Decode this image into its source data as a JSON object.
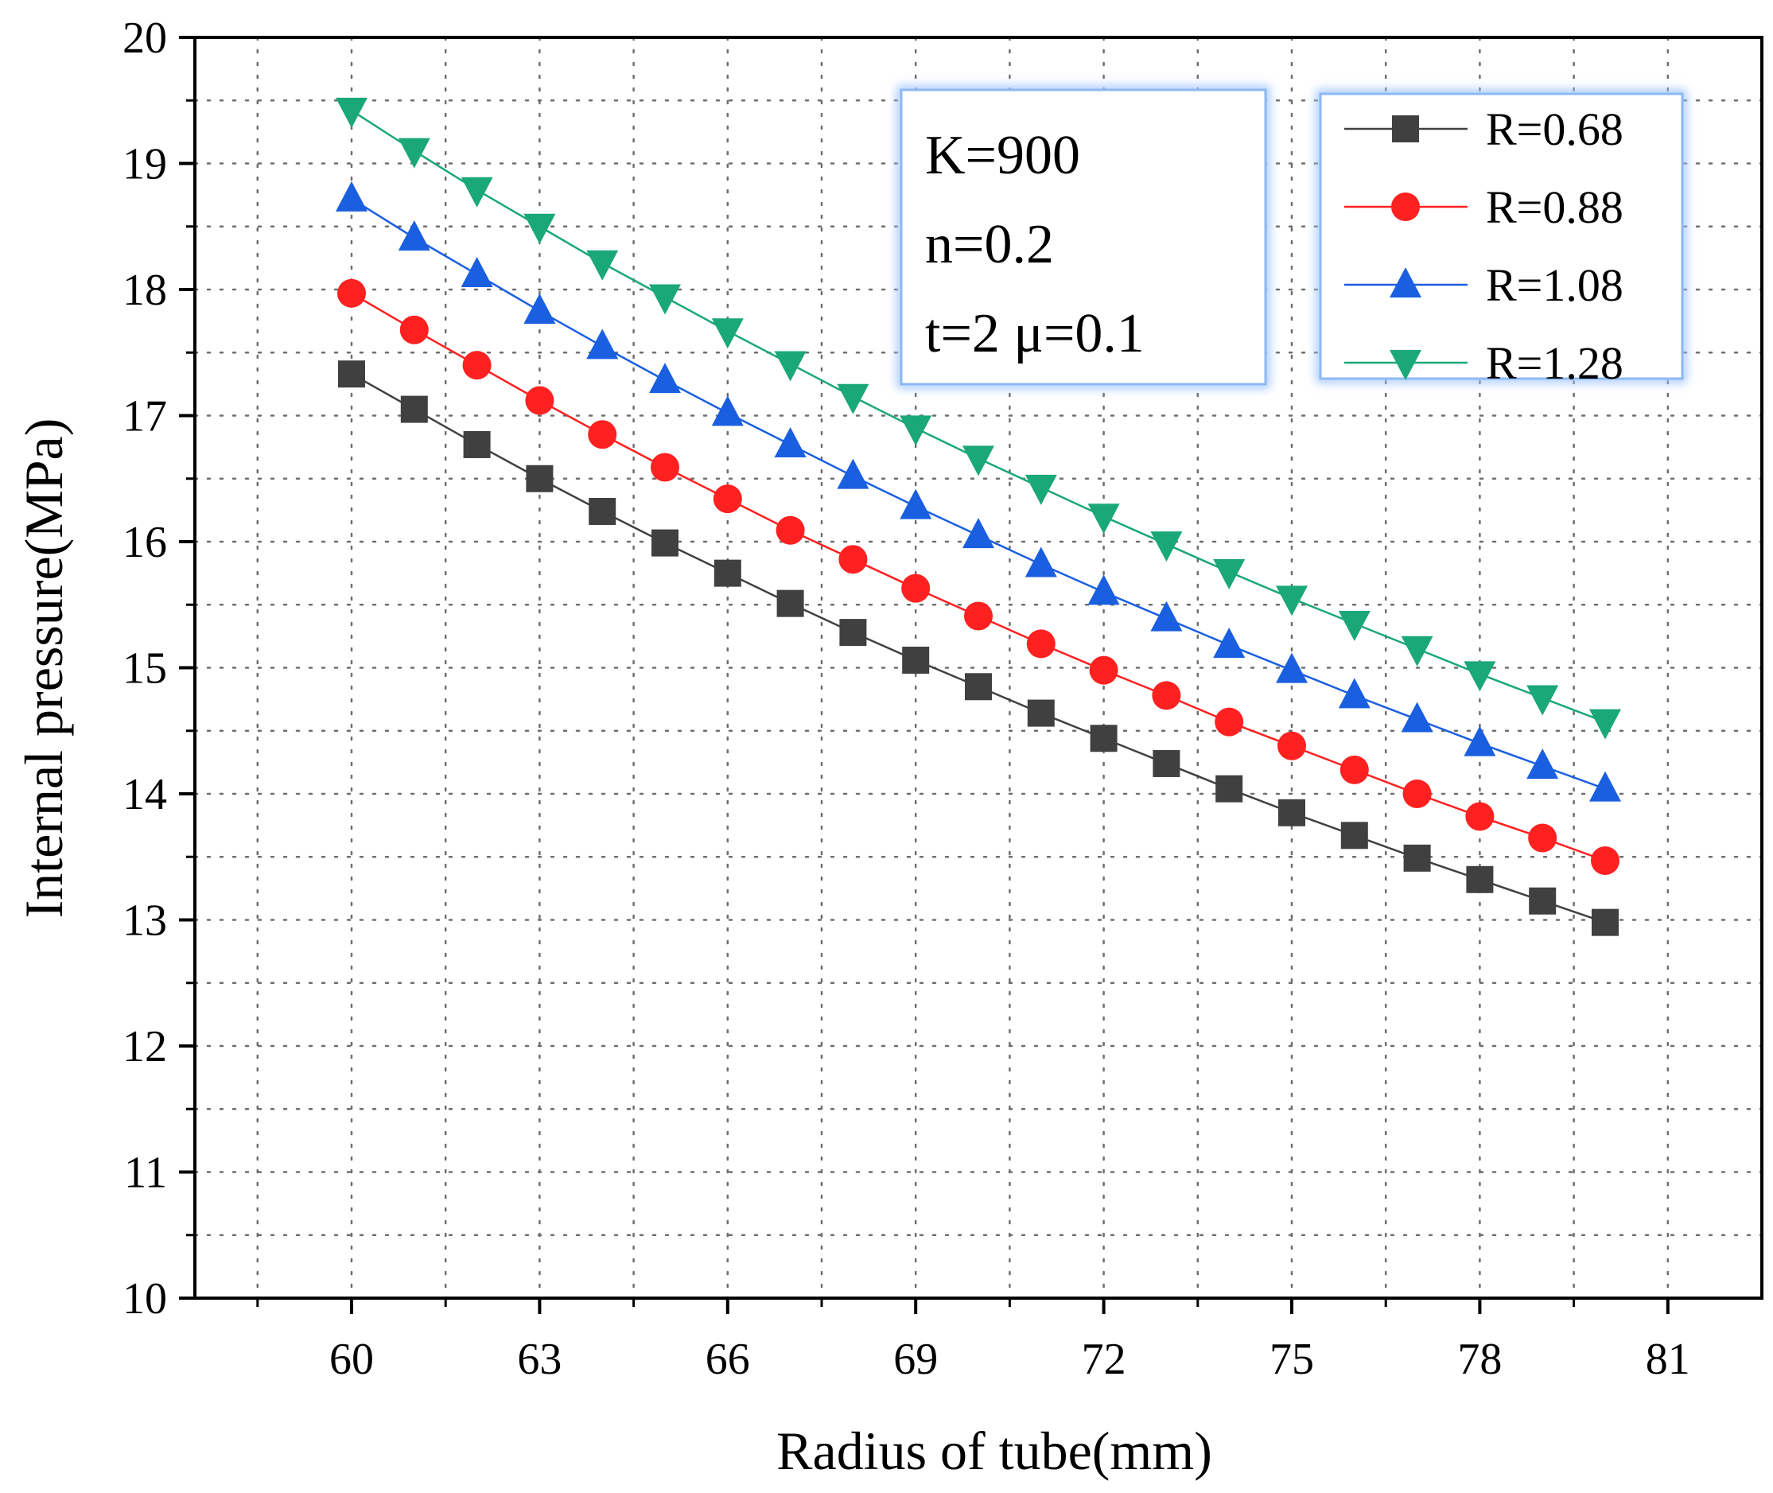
{
  "chart_data": {
    "type": "line",
    "xlabel": "Radius of tube(mm)",
    "ylabel": "Internal pressure(MPa)",
    "xlim": [
      57.5,
      82.5
    ],
    "ylim": [
      10,
      20
    ],
    "x_major_ticks": [
      60,
      63,
      66,
      69,
      72,
      75,
      78,
      81
    ],
    "x_minor_ticks": [
      58.5,
      61.5,
      64.5,
      67.5,
      70.5,
      73.5,
      76.5,
      79.5
    ],
    "y_major_ticks": [
      10,
      11,
      12,
      13,
      14,
      15,
      16,
      17,
      18,
      19,
      20
    ],
    "y_minor_ticks": [
      10.5,
      11.5,
      12.5,
      13.5,
      14.5,
      15.5,
      16.5,
      17.5,
      18.5,
      19.5
    ],
    "x_tick_labels": [
      "60",
      "63",
      "66",
      "69",
      "72",
      "75",
      "78",
      "81"
    ],
    "y_tick_labels": [
      "10",
      "11",
      "12",
      "13",
      "14",
      "15",
      "16",
      "17",
      "18",
      "19",
      "20"
    ],
    "grid": true,
    "x": [
      60,
      61,
      62,
      63,
      64,
      65,
      66,
      67,
      68,
      69,
      70,
      71,
      72,
      73,
      74,
      75,
      76,
      77,
      78,
      79,
      80
    ],
    "series": [
      {
        "name": "R=0.68",
        "color": "#404040",
        "marker": "square",
        "values": [
          17.33,
          17.05,
          16.77,
          16.5,
          16.24,
          15.99,
          15.75,
          15.51,
          15.28,
          15.06,
          14.85,
          14.64,
          14.44,
          14.24,
          14.04,
          13.85,
          13.67,
          13.49,
          13.32,
          13.15,
          12.98
        ]
      },
      {
        "name": "R=0.88",
        "color": "#ff2020",
        "marker": "circle",
        "values": [
          17.97,
          17.68,
          17.4,
          17.12,
          16.85,
          16.59,
          16.34,
          16.09,
          15.86,
          15.63,
          15.41,
          15.19,
          14.98,
          14.78,
          14.57,
          14.38,
          14.19,
          14.0,
          13.82,
          13.65,
          13.47
        ]
      },
      {
        "name": "R=1.08",
        "color": "#1a5fe0",
        "marker": "triangle-up",
        "values": [
          18.72,
          18.41,
          18.12,
          17.83,
          17.55,
          17.28,
          17.02,
          16.77,
          16.52,
          16.28,
          16.05,
          15.82,
          15.6,
          15.39,
          15.18,
          14.98,
          14.78,
          14.59,
          14.4,
          14.22,
          14.04
        ]
      },
      {
        "name": "R=1.28",
        "color": "#1aa878",
        "marker": "triangle-down",
        "values": [
          19.42,
          19.1,
          18.79,
          18.5,
          18.21,
          17.94,
          17.67,
          17.41,
          17.15,
          16.9,
          16.66,
          16.43,
          16.2,
          15.98,
          15.76,
          15.55,
          15.35,
          15.15,
          14.95,
          14.76,
          14.57
        ]
      }
    ],
    "annotation_lines": [
      "K=900",
      "n=0.2",
      "t=2 μ=0.1"
    ],
    "legend_position": "top-right"
  }
}
